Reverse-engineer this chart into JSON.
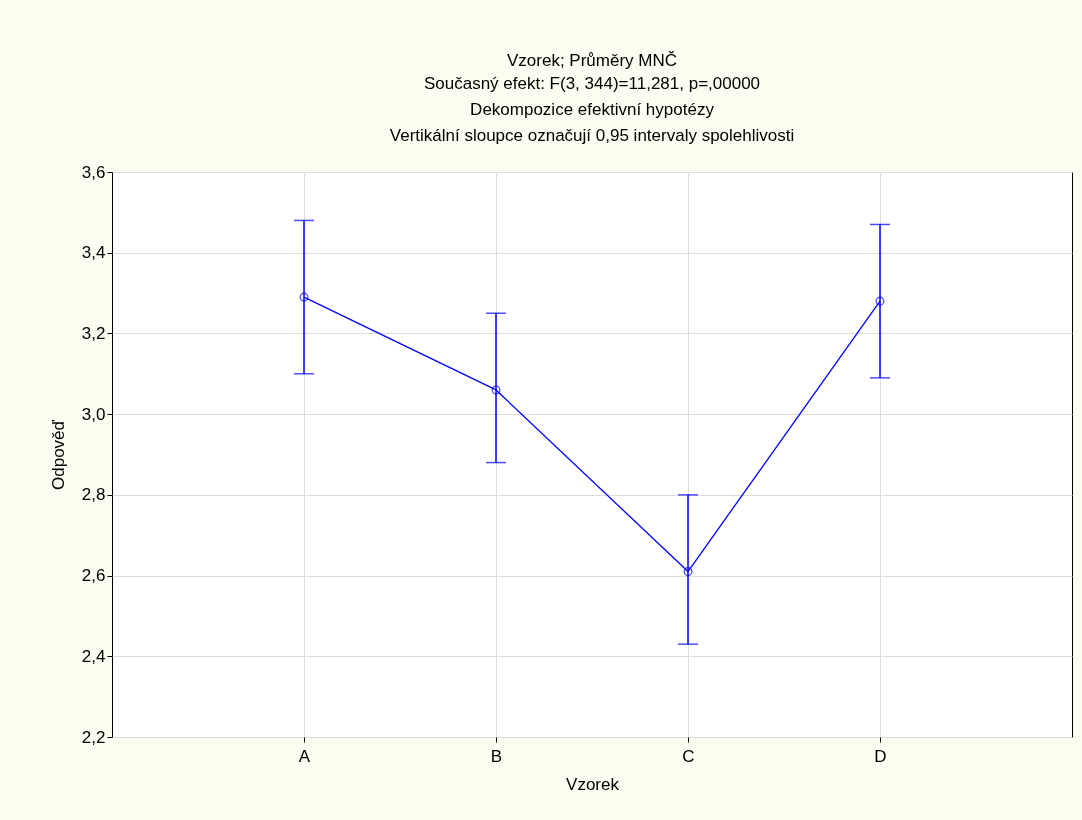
{
  "chart_data": {
    "type": "line",
    "title": "Vzorek; Průměry MNČ",
    "subtitle": "Současný efekt: F(3, 344)=11,281, p=,00000\nDekompozice efektivní hypotézy\nVertikální sloupce označují 0,95 intervaly spolehlivosti",
    "xlabel": "Vzorek",
    "ylabel": "Odpověď",
    "categories": [
      "A",
      "B",
      "C",
      "D"
    ],
    "series": [
      {
        "color": "#0000ff",
        "values": [
          3.29,
          3.06,
          2.61,
          3.28
        ],
        "errors": [
          [
            3.1,
            3.48
          ],
          [
            2.88,
            3.25
          ],
          [
            2.43,
            2.8
          ],
          [
            3.09,
            3.47
          ]
        ]
      }
    ],
    "ylim": [
      2.2,
      3.6
    ],
    "yticks": [
      {
        "value": 2.2,
        "label": "2,2"
      },
      {
        "value": 2.4,
        "label": "2,4"
      },
      {
        "value": 2.6,
        "label": "2,6"
      },
      {
        "value": 2.8,
        "label": "2,8"
      },
      {
        "value": 3.0,
        "label": "3,0"
      },
      {
        "value": 3.2,
        "label": "3,2"
      },
      {
        "value": 3.4,
        "label": "3,4"
      },
      {
        "value": 3.6,
        "label": "3,6"
      }
    ],
    "grid": true,
    "marker": "circle",
    "line_style": "solid"
  }
}
